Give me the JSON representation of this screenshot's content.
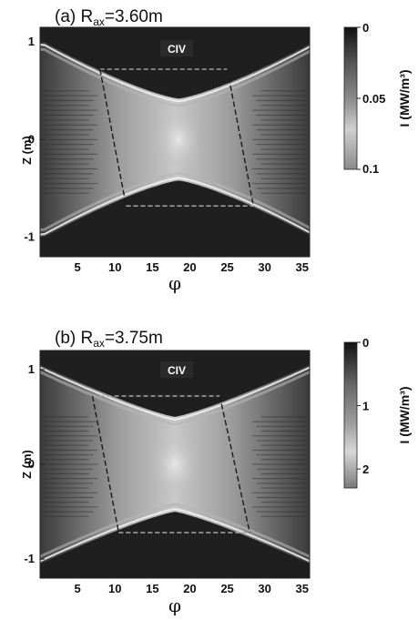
{
  "chart_data": [
    {
      "type": "heatmap",
      "title_prefix": "(a) R",
      "title_sub": "ax",
      "title_suffix": "=3.60m",
      "species_label": "CIV",
      "xlabel": "φ",
      "ylabel": "Z (m)",
      "xlim": [
        0,
        36
      ],
      "ylim": [
        -1.2,
        1.15
      ],
      "xticks": [
        5,
        10,
        15,
        20,
        25,
        30,
        35
      ],
      "yticks": [
        1,
        0,
        -1
      ],
      "colorbar": {
        "label": "I (MW/m³)",
        "ticks": [
          "0",
          "0.05",
          "0.1"
        ],
        "tick_values": [
          0,
          0.05,
          0.1
        ],
        "range": [
          0,
          0.1
        ],
        "colors": [
          "#111111",
          "#555555",
          "#8a8a8a",
          "#d0d0d0",
          "#8a8a8a"
        ]
      },
      "boundary": {
        "x_min_half_width": 0.42,
        "x_min_at": 18.5,
        "z_max": 1.0,
        "shape_exponent": 1.3
      },
      "analysis_box": {
        "corners": [
          [
            8.0,
            0.72
          ],
          [
            25.0,
            0.72
          ],
          [
            28.5,
            -0.68
          ],
          [
            11.5,
            -0.68
          ]
        ]
      }
    },
    {
      "type": "heatmap",
      "title_prefix": "(b) R",
      "title_sub": "ax",
      "title_suffix": "=3.75m",
      "species_label": "CIV",
      "xlabel": "φ",
      "ylabel": "Z (m)",
      "xlim": [
        0,
        36
      ],
      "ylim": [
        -1.2,
        1.2
      ],
      "xticks": [
        5,
        10,
        15,
        20,
        25,
        30,
        35
      ],
      "yticks": [
        1,
        0,
        -1
      ],
      "colorbar": {
        "label": "I (MW/m³)",
        "ticks": [
          "0",
          "1",
          "2"
        ],
        "tick_values": [
          0,
          1,
          2
        ],
        "range": [
          0,
          2.3
        ],
        "colors": [
          "#111111",
          "#6a6a6a",
          "#9b9b9b",
          "#d8d8d8",
          "#7a7a7a"
        ]
      },
      "boundary": {
        "x_min_half_width": 0.5,
        "x_min_at": 18.0,
        "z_max": 1.05,
        "shape_exponent": 1.2
      },
      "analysis_box": {
        "corners": [
          [
            7.0,
            0.72
          ],
          [
            24.0,
            0.72
          ],
          [
            28.0,
            -0.72
          ],
          [
            10.5,
            -0.72
          ]
        ]
      }
    }
  ]
}
